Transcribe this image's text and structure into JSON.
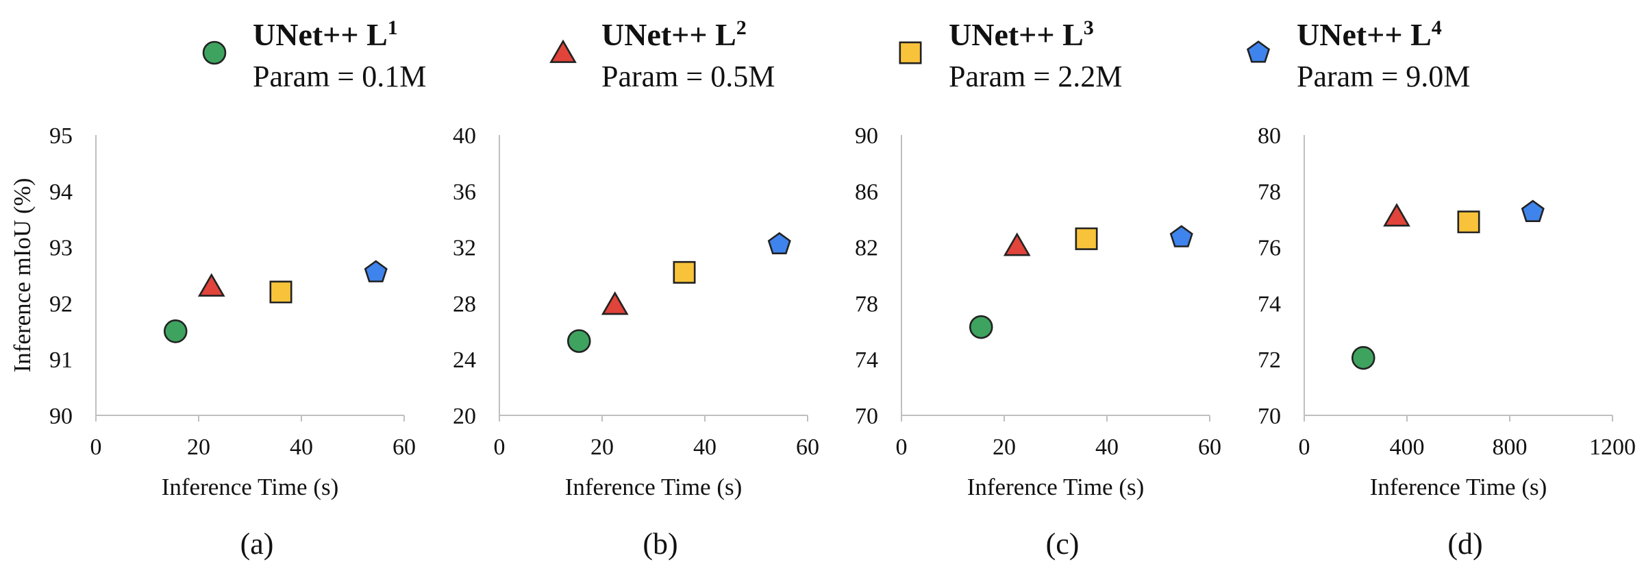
{
  "legend": [
    {
      "name": "UNet++ L",
      "sup": "1",
      "param": "Param = 0.1M",
      "marker": "circle",
      "color": "#3ea35f"
    },
    {
      "name": "UNet++ L",
      "sup": "2",
      "param": "Param = 0.5M",
      "marker": "triangle",
      "color": "#e0443a"
    },
    {
      "name": "UNet++ L",
      "sup": "3",
      "param": "Param = 2.2M",
      "marker": "square",
      "color": "#f8c33a"
    },
    {
      "name": "UNet++ L",
      "sup": "4",
      "param": "Param = 9.0M",
      "marker": "pentagon",
      "color": "#3f84ec"
    }
  ],
  "chart_data": [
    {
      "type": "scatter",
      "panel_label": "(a)",
      "xlabel": "Inference Time (s)",
      "ylabel": "Inference mIoU (%)",
      "xlim": [
        0,
        60
      ],
      "ylim": [
        90,
        95
      ],
      "xticks": [
        "0",
        "20",
        "40",
        "60"
      ],
      "yticks": [
        "90",
        "91",
        "92",
        "93",
        "94",
        "95"
      ],
      "points": [
        {
          "series": "UNet++ L1",
          "x": 15.5,
          "y": 91.5
        },
        {
          "series": "UNet++ L2",
          "x": 22.5,
          "y": 92.3
        },
        {
          "series": "UNet++ L3",
          "x": 36.0,
          "y": 92.2
        },
        {
          "series": "UNet++ L4",
          "x": 54.5,
          "y": 92.55
        }
      ]
    },
    {
      "type": "scatter",
      "panel_label": "(b)",
      "xlabel": "Inference Time (s)",
      "ylabel": "",
      "xlim": [
        0,
        60
      ],
      "ylim": [
        20,
        40
      ],
      "xticks": [
        "0",
        "20",
        "40",
        "60"
      ],
      "yticks": [
        "20",
        "24",
        "28",
        "32",
        "36",
        "40"
      ],
      "points": [
        {
          "series": "UNet++ L1",
          "x": 15.5,
          "y": 25.3
        },
        {
          "series": "UNet++ L2",
          "x": 22.5,
          "y": 27.9
        },
        {
          "series": "UNet++ L3",
          "x": 36.0,
          "y": 30.2
        },
        {
          "series": "UNet++ L4",
          "x": 54.5,
          "y": 32.2
        }
      ]
    },
    {
      "type": "scatter",
      "panel_label": "(c)",
      "xlabel": "Inference Time (s)",
      "ylabel": "",
      "xlim": [
        0,
        60
      ],
      "ylim": [
        70,
        90
      ],
      "xticks": [
        "0",
        "20",
        "40",
        "60"
      ],
      "yticks": [
        "70",
        "74",
        "78",
        "82",
        "86",
        "90"
      ],
      "points": [
        {
          "series": "UNet++ L1",
          "x": 15.5,
          "y": 76.3
        },
        {
          "series": "UNet++ L2",
          "x": 22.5,
          "y": 82.1
        },
        {
          "series": "UNet++ L3",
          "x": 36.0,
          "y": 82.6
        },
        {
          "series": "UNet++ L4",
          "x": 54.5,
          "y": 82.7
        }
      ]
    },
    {
      "type": "scatter",
      "panel_label": "(d)",
      "xlabel": "Inference Time (s)",
      "ylabel": "",
      "xlim": [
        0,
        1200
      ],
      "ylim": [
        70,
        80
      ],
      "xticks": [
        "0",
        "400",
        "800",
        "1200"
      ],
      "yticks": [
        "70",
        "72",
        "74",
        "76",
        "78",
        "80"
      ],
      "points": [
        {
          "series": "UNet++ L1",
          "x": 230,
          "y": 72.05
        },
        {
          "series": "UNet++ L2",
          "x": 360,
          "y": 77.1
        },
        {
          "series": "UNet++ L3",
          "x": 640,
          "y": 76.9
        },
        {
          "series": "UNet++ L4",
          "x": 890,
          "y": 77.25
        }
      ]
    }
  ]
}
